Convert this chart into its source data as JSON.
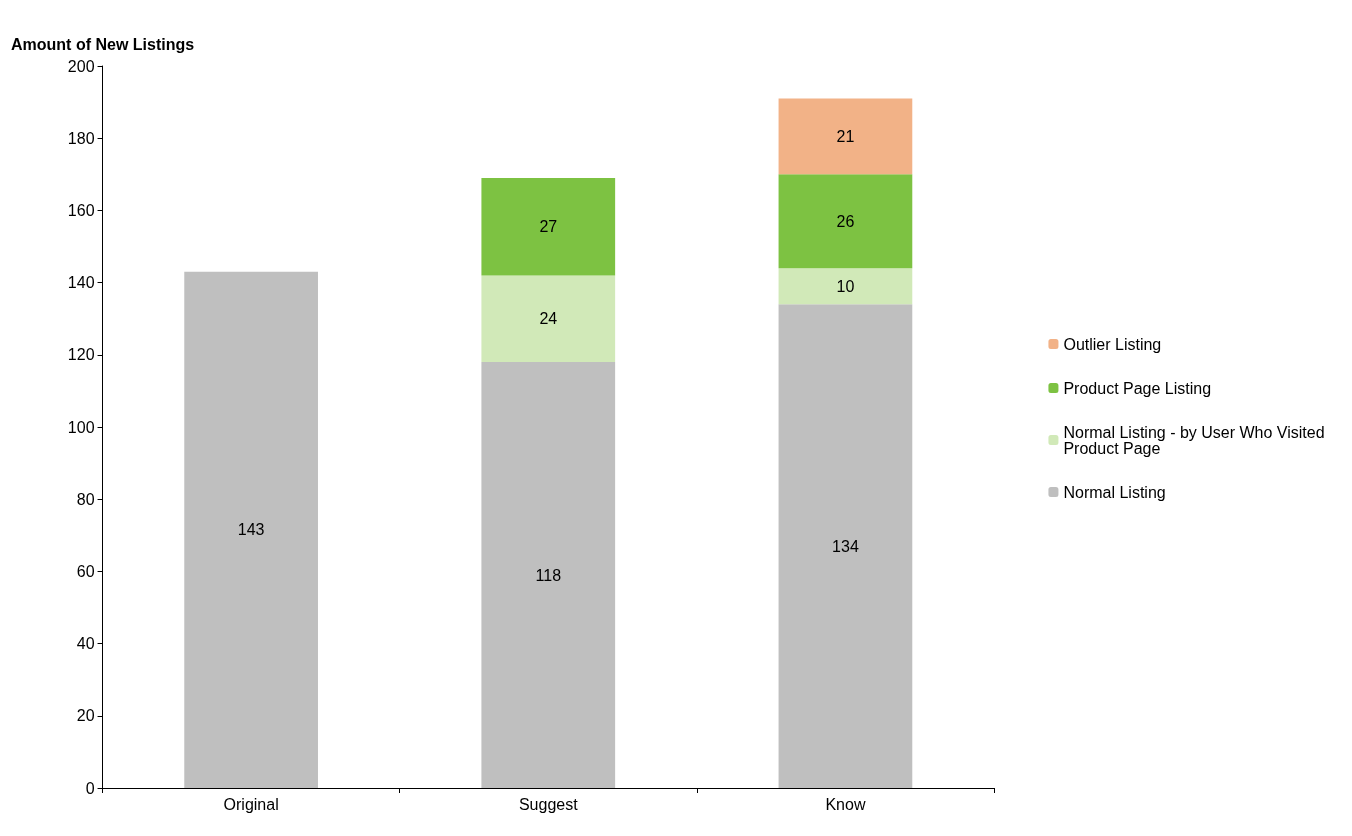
{
  "chart_data": {
    "type": "bar",
    "stacked": true,
    "ylabel": "Amount of New Listings",
    "categories": [
      "Original",
      "Suggest",
      "Know"
    ],
    "series": [
      {
        "name": "Normal Listing",
        "color": "#bfbfbf",
        "values": [
          143,
          118,
          134
        ]
      },
      {
        "name": "Normal Listing - by User Who Visited Product Page",
        "color": "#d1e9b8",
        "values": [
          null,
          24,
          10
        ]
      },
      {
        "name": "Product Page Listing",
        "color": "#7dc242",
        "values": [
          null,
          27,
          26
        ]
      },
      {
        "name": "Outlier Listing",
        "color": "#f2b287",
        "values": [
          null,
          null,
          21
        ]
      }
    ],
    "ylim": [
      0,
      200
    ],
    "yticks": [
      0,
      20,
      40,
      60,
      80,
      100,
      120,
      140,
      160,
      180,
      200
    ],
    "grid": false,
    "legend": "right",
    "data_labels": true
  }
}
